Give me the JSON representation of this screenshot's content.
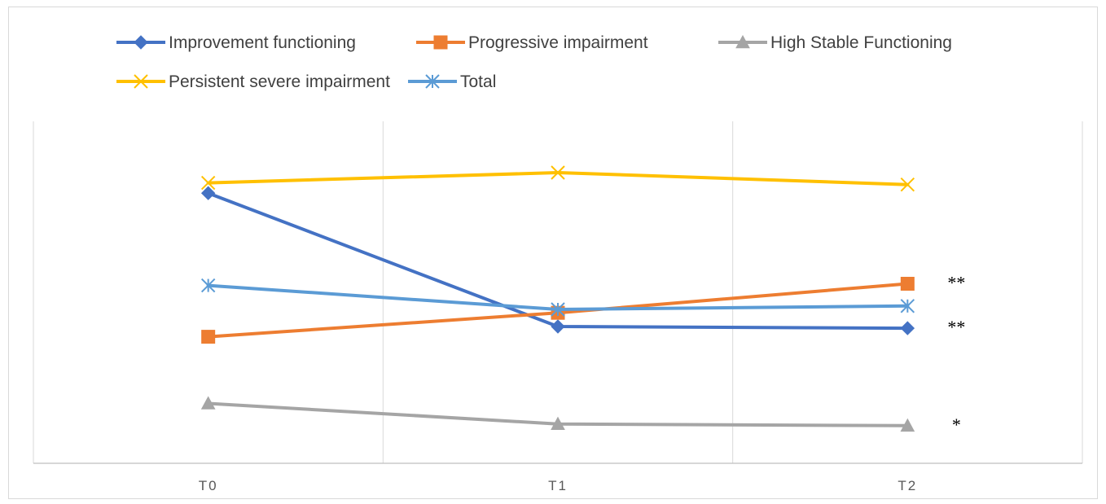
{
  "chart_data": {
    "type": "line",
    "title": "",
    "xlabel": "",
    "ylabel": "",
    "categories": [
      "T0",
      "T1",
      "T2"
    ],
    "ylim": [
      0,
      100
    ],
    "grid": "vertical",
    "legend_position": "top",
    "series": [
      {
        "name": "Improvement functioning",
        "values": [
          79,
          40,
          39.5
        ],
        "color": "#4472C4",
        "marker": "diamond"
      },
      {
        "name": "Progressive impairment",
        "values": [
          37,
          44,
          52.5
        ],
        "color": "#ED7D31",
        "marker": "square"
      },
      {
        "name": "High Stable Functioning",
        "values": [
          17.5,
          11.5,
          11
        ],
        "color": "#A5A5A5",
        "marker": "triangle"
      },
      {
        "name": "Persistent severe impairment",
        "values": [
          82,
          85,
          81.5
        ],
        "color": "#FFC000",
        "marker": "x"
      },
      {
        "name": "Total",
        "values": [
          52,
          45,
          46
        ],
        "color": "#5B9BD5",
        "marker": "star"
      }
    ],
    "annotations": [
      {
        "text": "**",
        "series": "Progressive impairment"
      },
      {
        "text": "**",
        "series": "Improvement functioning"
      },
      {
        "text": "*",
        "series": "High Stable Functioning"
      }
    ]
  }
}
